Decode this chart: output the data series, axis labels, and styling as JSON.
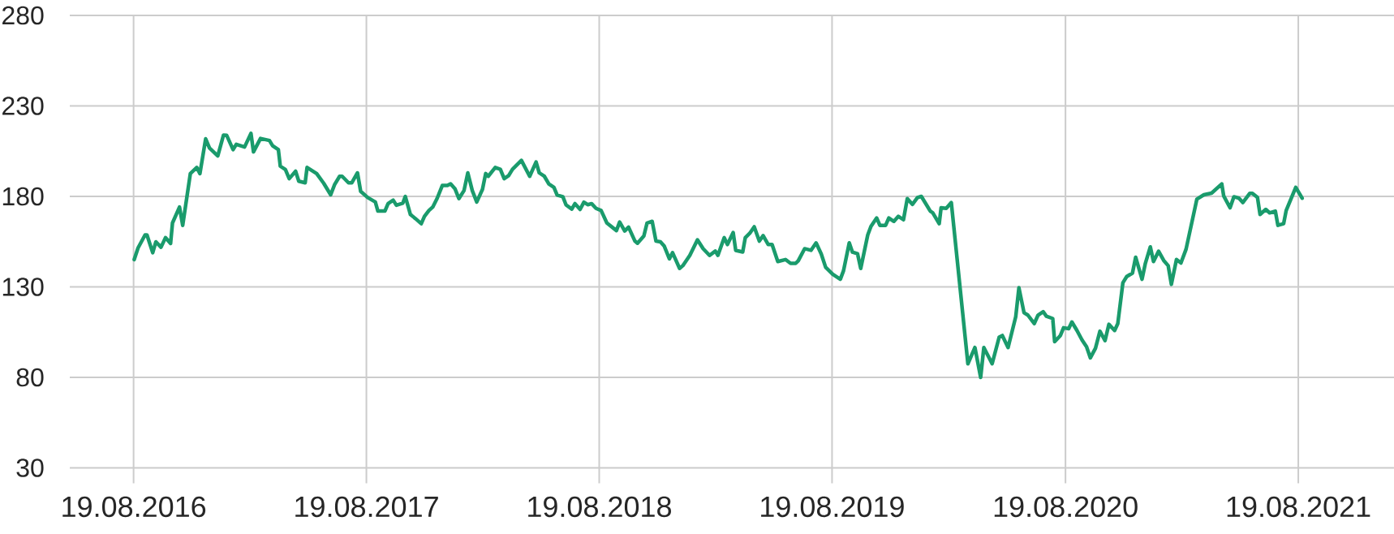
{
  "chart_data": {
    "type": "line",
    "grid": true,
    "xlim": [
      "2016-05-11",
      "2022-01-16"
    ],
    "ylim": [
      30,
      280
    ],
    "yticks": [
      30,
      80,
      130,
      180,
      230,
      280
    ],
    "xticks": [
      {
        "value": "2016-08-19",
        "label": "19.08.2016"
      },
      {
        "value": "2017-08-19",
        "label": "19.08.2017"
      },
      {
        "value": "2018-08-19",
        "label": "19.08.2018"
      },
      {
        "value": "2019-08-19",
        "label": "19.08.2019"
      },
      {
        "value": "2020-08-19",
        "label": "19.08.2020"
      },
      {
        "value": "2021-08-19",
        "label": "19.08.2021"
      }
    ],
    "x": [
      "2016-08-20",
      "2016-08-26",
      "2016-09-06",
      "2016-09-09",
      "2016-09-18",
      "2016-09-23",
      "2016-10-01",
      "2016-10-08",
      "2016-10-16",
      "2016-10-19",
      "2016-10-30",
      "2016-11-04",
      "2016-11-16",
      "2016-11-26",
      "2016-12-01",
      "2016-12-10",
      "2016-12-16",
      "2016-12-29",
      "2017-01-07",
      "2017-01-12",
      "2017-01-22",
      "2017-01-27",
      "2017-02-09",
      "2017-02-19",
      "2017-02-23",
      "2017-03-06",
      "2017-03-20",
      "2017-03-25",
      "2017-04-03",
      "2017-04-06",
      "2017-04-14",
      "2017-04-20",
      "2017-04-30",
      "2017-05-05",
      "2017-05-15",
      "2017-05-18",
      "2017-06-02",
      "2017-06-13",
      "2017-06-24",
      "2017-06-30",
      "2017-07-08",
      "2017-07-12",
      "2017-07-22",
      "2017-07-27",
      "2017-08-05",
      "2017-08-10",
      "2017-08-21",
      "2017-09-02",
      "2017-09-06",
      "2017-09-17",
      "2017-09-22",
      "2017-09-30",
      "2017-10-05",
      "2017-10-15",
      "2017-10-19",
      "2017-10-27",
      "2017-11-04",
      "2017-11-13",
      "2017-11-18",
      "2017-11-25",
      "2017-12-01",
      "2017-12-08",
      "2017-12-16",
      "2017-12-24",
      "2017-12-29",
      "2018-01-05",
      "2018-01-11",
      "2018-01-19",
      "2018-01-25",
      "2018-02-01",
      "2018-02-08",
      "2018-02-17",
      "2018-02-22",
      "2018-02-26",
      "2018-03-09",
      "2018-03-17",
      "2018-03-23",
      "2018-03-30",
      "2018-04-05",
      "2018-04-19",
      "2018-05-02",
      "2018-05-12",
      "2018-05-17",
      "2018-05-25",
      "2018-06-01",
      "2018-06-09",
      "2018-06-14",
      "2018-06-23",
      "2018-06-28",
      "2018-07-07",
      "2018-07-12",
      "2018-07-20",
      "2018-07-26",
      "2018-08-01",
      "2018-08-07",
      "2018-08-14",
      "2018-08-22",
      "2018-08-31",
      "2018-09-15",
      "2018-09-20",
      "2018-09-28",
      "2018-10-04",
      "2018-10-14",
      "2018-10-18",
      "2018-10-28",
      "2018-11-02",
      "2018-11-10",
      "2018-11-16",
      "2018-11-23",
      "2018-11-29",
      "2018-12-07",
      "2018-12-12",
      "2018-12-23",
      "2018-12-28",
      "2019-01-08",
      "2019-01-20",
      "2019-01-29",
      "2019-02-08",
      "2019-02-17",
      "2019-02-21",
      "2019-03-03",
      "2019-03-08",
      "2019-03-17",
      "2019-03-21",
      "2019-04-01",
      "2019-04-05",
      "2019-04-12",
      "2019-04-19",
      "2019-04-27",
      "2019-05-03",
      "2019-05-11",
      "2019-05-17",
      "2019-05-26",
      "2019-06-07",
      "2019-06-15",
      "2019-06-23",
      "2019-06-27",
      "2019-07-07",
      "2019-07-17",
      "2019-07-25",
      "2019-08-02",
      "2019-08-09",
      "2019-08-20",
      "2019-09-01",
      "2019-09-06",
      "2019-09-15",
      "2019-09-20",
      "2019-09-28",
      "2019-10-03",
      "2019-10-14",
      "2019-10-19",
      "2019-10-28",
      "2019-11-02",
      "2019-11-11",
      "2019-11-16",
      "2019-11-24",
      "2019-12-01",
      "2019-12-09",
      "2019-12-15",
      "2019-12-23",
      "2019-12-31",
      "2020-01-06",
      "2020-01-20",
      "2020-01-24",
      "2020-02-03",
      "2020-02-06",
      "2020-02-14",
      "2020-02-22",
      "2020-03-19",
      "2020-03-30",
      "2020-04-08",
      "2020-04-13",
      "2020-04-26",
      "2020-05-07",
      "2020-05-12",
      "2020-05-21",
      "2020-06-02",
      "2020-06-07",
      "2020-06-15",
      "2020-06-21",
      "2020-07-01",
      "2020-07-07",
      "2020-07-15",
      "2020-07-20",
      "2020-07-30",
      "2020-08-02",
      "2020-08-11",
      "2020-08-16",
      "2020-08-24",
      "2020-08-29",
      "2020-09-06",
      "2020-09-14",
      "2020-09-21",
      "2020-09-27",
      "2020-10-05",
      "2020-10-12",
      "2020-10-20",
      "2020-10-26",
      "2020-11-04",
      "2020-11-09",
      "2020-11-17",
      "2020-11-23",
      "2020-12-02",
      "2020-12-07",
      "2020-12-17",
      "2020-12-22",
      "2020-12-30",
      "2021-01-04",
      "2021-01-12",
      "2021-01-20",
      "2021-01-27",
      "2021-02-01",
      "2021-02-09",
      "2021-02-16",
      "2021-02-24",
      "2021-03-13",
      "2021-03-24",
      "2021-04-05",
      "2021-04-21",
      "2021-04-24",
      "2021-05-04",
      "2021-05-10",
      "2021-05-18",
      "2021-05-24",
      "2021-06-04",
      "2021-06-08",
      "2021-06-16",
      "2021-06-20",
      "2021-06-29",
      "2021-07-05",
      "2021-07-14",
      "2021-07-18",
      "2021-07-27",
      "2021-07-31",
      "2021-08-15",
      "2021-08-25"
    ],
    "series": [
      {
        "color": "#1a9b6c",
        "values": [
          145.1,
          151.5,
          158.7,
          158.7,
          148.9,
          154.9,
          151.9,
          157.2,
          154,
          165.3,
          174.1,
          164,
          192.6,
          196,
          192.6,
          211.8,
          206.7,
          202.4,
          213.9,
          213.7,
          205.8,
          208.8,
          207.3,
          214.8,
          204.6,
          212,
          210.9,
          208,
          205.8,
          196.7,
          194.8,
          189.8,
          193.9,
          188.4,
          187.5,
          196,
          192.6,
          187.3,
          180.9,
          186.4,
          191.1,
          191.1,
          187.5,
          187.5,
          193,
          182.8,
          179.4,
          176.9,
          171.9,
          171.9,
          176,
          177.9,
          175.1,
          176.2,
          180,
          170,
          167.7,
          164.9,
          169,
          172.2,
          174.1,
          179,
          186,
          186,
          186.9,
          184.1,
          178.8,
          183.2,
          193,
          183.2,
          176.9,
          183.9,
          192.6,
          191.1,
          196,
          195,
          189.8,
          191.5,
          195,
          199.9,
          191.1,
          199,
          193,
          191.1,
          186.9,
          185,
          180.7,
          179.8,
          175.3,
          173,
          176,
          172.8,
          176.8,
          175.4,
          176,
          173.4,
          172.2,
          165.3,
          161.1,
          165.8,
          160.9,
          163,
          155.3,
          154.1,
          158.1,
          165.3,
          166.2,
          155.3,
          154.9,
          152.5,
          145.5,
          148.9,
          140.2,
          141.7,
          147.4,
          156,
          151.1,
          147.4,
          149.8,
          147.4,
          157.2,
          153.4,
          160,
          150.2,
          149.3,
          157.2,
          159.6,
          163.2,
          155.3,
          158.3,
          153.4,
          153.4,
          144,
          145.1,
          143,
          143,
          144.4,
          151.1,
          150.2,
          154.3,
          148.3,
          140.8,
          137,
          134.2,
          138.9,
          154.3,
          149.2,
          148.3,
          140.2,
          158.7,
          163.4,
          168.1,
          164,
          164,
          168.1,
          166.2,
          169,
          167.1,
          178.8,
          175.6,
          179.4,
          180,
          171.9,
          170.9,
          164.9,
          173.7,
          173.4,
          176.6,
          87.5,
          96.5,
          80,
          96.5,
          87.5,
          102.2,
          103.1,
          96.5,
          113.5,
          129.5,
          115.7,
          114.4,
          109.7,
          114.4,
          116.3,
          113.8,
          112.5,
          99.7,
          103.1,
          107.4,
          106.9,
          110.6,
          105.9,
          100.6,
          96.9,
          90.8,
          96.1,
          105.5,
          100.3,
          109.3,
          105.9,
          109.7,
          132.3,
          135.7,
          137.6,
          146.4,
          134.2,
          142.7,
          152.1,
          144,
          149.7,
          144.6,
          141.7,
          131.4,
          145.1,
          143.2,
          150.8,
          178.5,
          180.9,
          181.8,
          186.9,
          180.3,
          173.7,
          179.8,
          179,
          176.6,
          181.7,
          181.7,
          179.4,
          170,
          172.8,
          170.9,
          171.9,
          164,
          164.9,
          172.2,
          185,
          179
        ]
      }
    ]
  }
}
